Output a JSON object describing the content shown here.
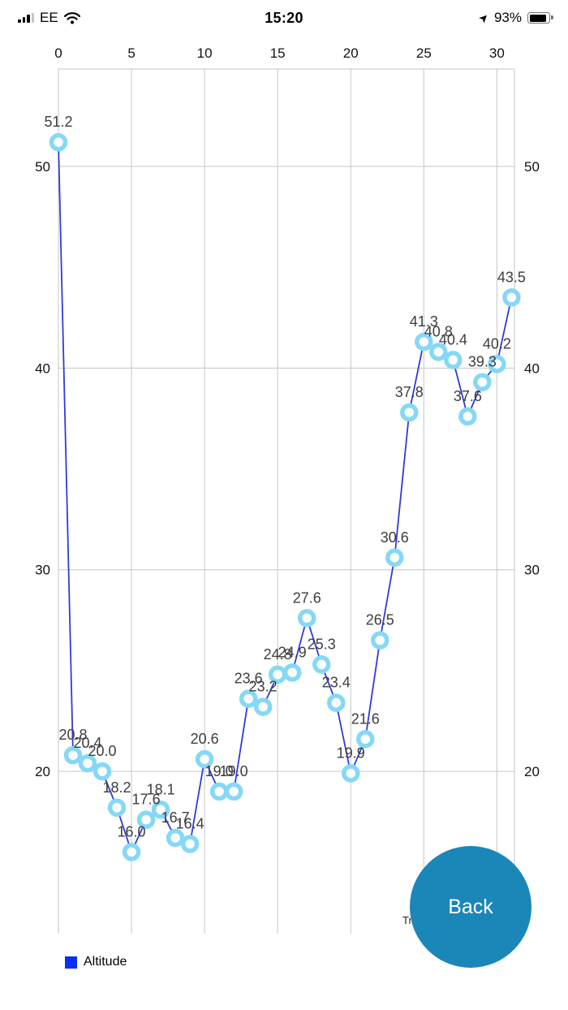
{
  "status_bar": {
    "carrier": "EE",
    "time": "15:20",
    "battery": "93%"
  },
  "chart_data": {
    "type": "line",
    "title": "",
    "series": [
      {
        "name": "Altitude",
        "x": [
          0,
          1,
          2,
          3,
          4,
          5,
          6,
          7,
          8,
          9,
          10,
          11,
          12,
          13,
          14,
          15,
          16,
          17,
          18,
          19,
          20,
          21,
          22,
          23,
          24,
          25,
          26,
          27,
          28,
          29,
          30,
          31
        ],
        "values": [
          51.2,
          20.8,
          20.4,
          20.0,
          18.2,
          16.0,
          17.6,
          18.1,
          16.7,
          16.4,
          20.6,
          19.0,
          19.0,
          23.6,
          23.2,
          24.8,
          24.9,
          27.6,
          25.3,
          23.4,
          19.9,
          21.6,
          26.5,
          30.6,
          37.8,
          41.3,
          40.8,
          40.4,
          37.6,
          39.3,
          40.2,
          43.5
        ]
      }
    ],
    "x_ticks": [
      0,
      5,
      10,
      15,
      20,
      25,
      30
    ],
    "y_ticks": [
      20,
      30,
      40,
      50
    ],
    "x_range": [
      0,
      31.2
    ],
    "y_range": [
      11.95,
      54.83
    ],
    "x_axis_position": "top",
    "y_axis_labels": "both-sides",
    "grid": true,
    "line_color": "#2f3cd3",
    "marker_ring_color": "#85d8f6",
    "marker_fill_color": "#ffffff",
    "label_color": "#3d3d3d",
    "grid_color": "#c6c6c6",
    "x_title_fragment": "Tr"
  },
  "legend": {
    "label": "Altitude",
    "color": "#0a30f5"
  },
  "back_button": {
    "label": "Back",
    "color": "#1a87b8"
  }
}
